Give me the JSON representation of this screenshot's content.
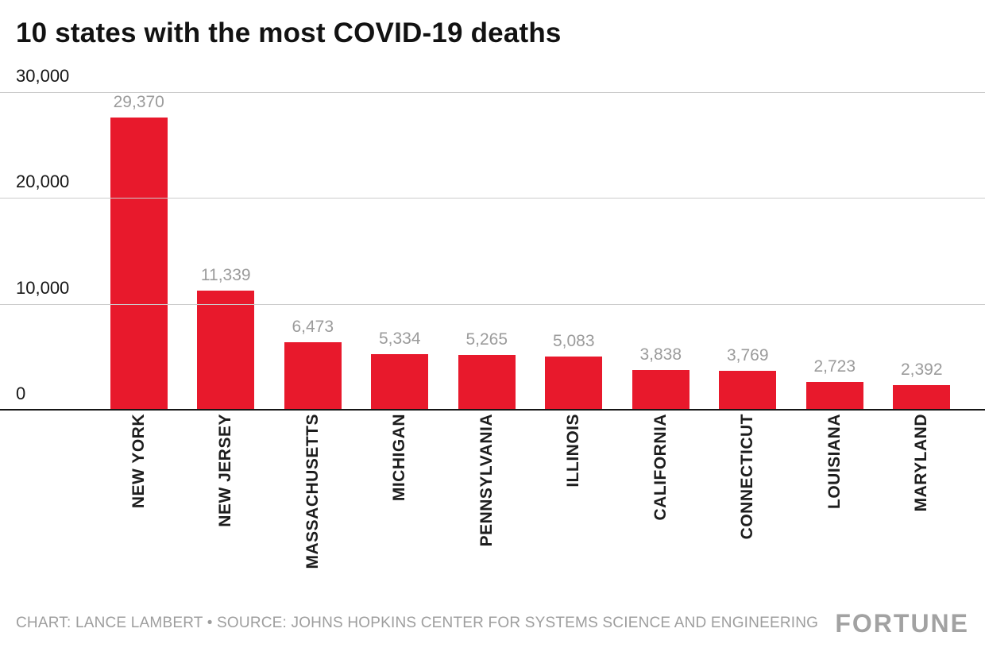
{
  "title": "10 states with the most COVID-19 deaths",
  "footer": {
    "credit": "CHART: LANCE LAMBERT • SOURCE: JOHNS HOPKINS CENTER FOR SYSTEMS SCIENCE AND ENGINEERING",
    "brand": "FORTUNE"
  },
  "colors": {
    "bar": "#e8192c",
    "value_label": "#9b9b9b",
    "axis_label": "#1d1d1d",
    "gridline": "#cccccc",
    "baseline": "#161616",
    "credit": "#9e9e9e"
  },
  "chart_data": {
    "type": "bar",
    "title": "10 states with the most COVID-19 deaths",
    "categories": [
      "NEW YORK",
      "NEW JERSEY",
      "MASSACHUSETTS",
      "MICHIGAN",
      "PENNSYLVANIA",
      "ILLINOIS",
      "CALIFORNIA",
      "CONNECTICUT",
      "LOUISIANA",
      "MARYLAND"
    ],
    "values": [
      29370,
      11339,
      6473,
      5334,
      5265,
      5083,
      3838,
      3769,
      2723,
      2392
    ],
    "value_labels": [
      "29,370",
      "11,339",
      "6,473",
      "5,334",
      "5,265",
      "5,083",
      "3,838",
      "3,769",
      "2,723",
      "2,392"
    ],
    "xlabel": "",
    "ylabel": "",
    "ylim": [
      0,
      30000
    ],
    "y_ticks": [
      0,
      10000,
      20000,
      30000
    ],
    "y_tick_labels": [
      "0",
      "10,000",
      "20,000",
      "30,000"
    ],
    "grid": true,
    "legend": "none",
    "bar_color": "#e8192c"
  }
}
